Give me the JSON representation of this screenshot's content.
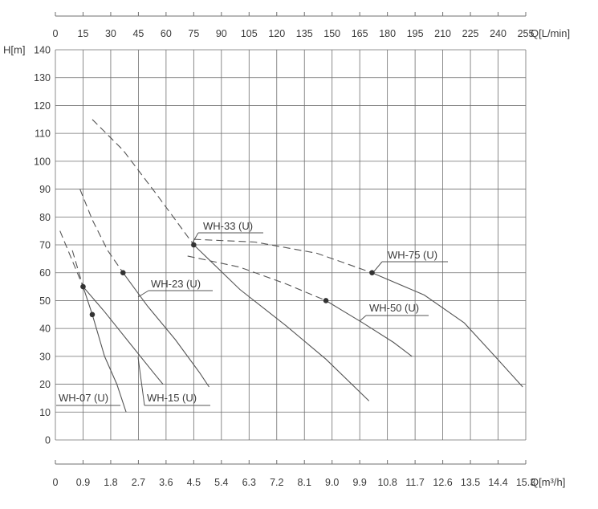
{
  "chart_data": {
    "type": "line",
    "title": "",
    "grid": true,
    "colors": {
      "grid": "#6f6f6f",
      "curve": "#555555",
      "text": "#3a3a3a"
    },
    "x_top": {
      "label": "Q[L/min]",
      "range": [
        0,
        255
      ],
      "ticks": [
        "0",
        "15",
        "30",
        "45",
        "60",
        "75",
        "90",
        "105",
        "120",
        "135",
        "150",
        "165",
        "180",
        "195",
        "210",
        "225",
        "240",
        "255"
      ]
    },
    "x_bottom": {
      "label": "Q[m³/h]",
      "range": [
        0,
        15.3
      ],
      "ticks": [
        "0",
        "0.9",
        "1.8",
        "2.7",
        "3.6",
        "4.5",
        "5.4",
        "6.3",
        "7.2",
        "8.1",
        "9.0",
        "9.9",
        "10.8",
        "11.7",
        "12.6",
        "13.5",
        "14.4",
        "15.3"
      ]
    },
    "y": {
      "label": "H[m]",
      "range": [
        0,
        140
      ],
      "ticks": [
        "0",
        "10",
        "20",
        "30",
        "40",
        "50",
        "60",
        "70",
        "80",
        "90",
        "100",
        "110",
        "120",
        "130",
        "140"
      ]
    },
    "series": [
      {
        "name": "WH-07 (U)",
        "dashed": [
          [
            0.15,
            75
          ],
          [
            0.9,
            55
          ]
        ],
        "solid": [
          [
            0.9,
            55
          ],
          [
            1.2,
            45
          ],
          [
            1.6,
            30
          ],
          [
            2.0,
            20
          ],
          [
            2.3,
            10
          ]
        ],
        "marker": [
          1.2,
          45
        ]
      },
      {
        "name": "WH-15 (U)",
        "dashed": [
          [
            0.55,
            68
          ],
          [
            0.9,
            55
          ]
        ],
        "solid": [
          [
            0.9,
            55
          ],
          [
            1.6,
            46
          ],
          [
            2.4,
            35
          ],
          [
            3.2,
            24
          ],
          [
            3.5,
            20
          ]
        ],
        "marker": [
          0.9,
          55
        ]
      },
      {
        "name": "WH-23 (U)",
        "dashed": [
          [
            0.8,
            90
          ],
          [
            1.2,
            79
          ],
          [
            1.7,
            68
          ],
          [
            2.2,
            60
          ]
        ],
        "solid": [
          [
            2.2,
            60
          ],
          [
            3.0,
            48
          ],
          [
            3.9,
            36
          ],
          [
            4.7,
            24
          ],
          [
            5.0,
            19
          ]
        ],
        "marker": [
          2.2,
          60
        ]
      },
      {
        "name": "WH-33 (U)",
        "dashed": [
          [
            1.2,
            115
          ],
          [
            2.2,
            104
          ],
          [
            3.3,
            88
          ],
          [
            4.5,
            70
          ]
        ],
        "solid": [
          [
            4.5,
            70
          ],
          [
            6.0,
            54
          ],
          [
            7.5,
            41
          ],
          [
            8.8,
            29
          ],
          [
            10.2,
            14
          ]
        ],
        "marker": [
          4.5,
          70
        ]
      },
      {
        "name": "WH-50 (U)",
        "dashed": [
          [
            4.3,
            66
          ],
          [
            6.0,
            62
          ],
          [
            7.5,
            56
          ],
          [
            8.8,
            50
          ]
        ],
        "solid": [
          [
            8.8,
            50
          ],
          [
            10.0,
            42
          ],
          [
            11.0,
            35
          ],
          [
            11.6,
            30
          ]
        ],
        "marker": [
          8.8,
          50
        ]
      },
      {
        "name": "WH-75 (U)",
        "dashed": [
          [
            4.5,
            72
          ],
          [
            6.5,
            71
          ],
          [
            8.5,
            67
          ],
          [
            10.3,
            60
          ]
        ],
        "solid": [
          [
            10.3,
            60
          ],
          [
            12.0,
            52
          ],
          [
            13.3,
            42
          ],
          [
            14.3,
            30
          ],
          [
            15.2,
            19
          ]
        ],
        "marker": [
          10.3,
          60
        ]
      }
    ]
  }
}
